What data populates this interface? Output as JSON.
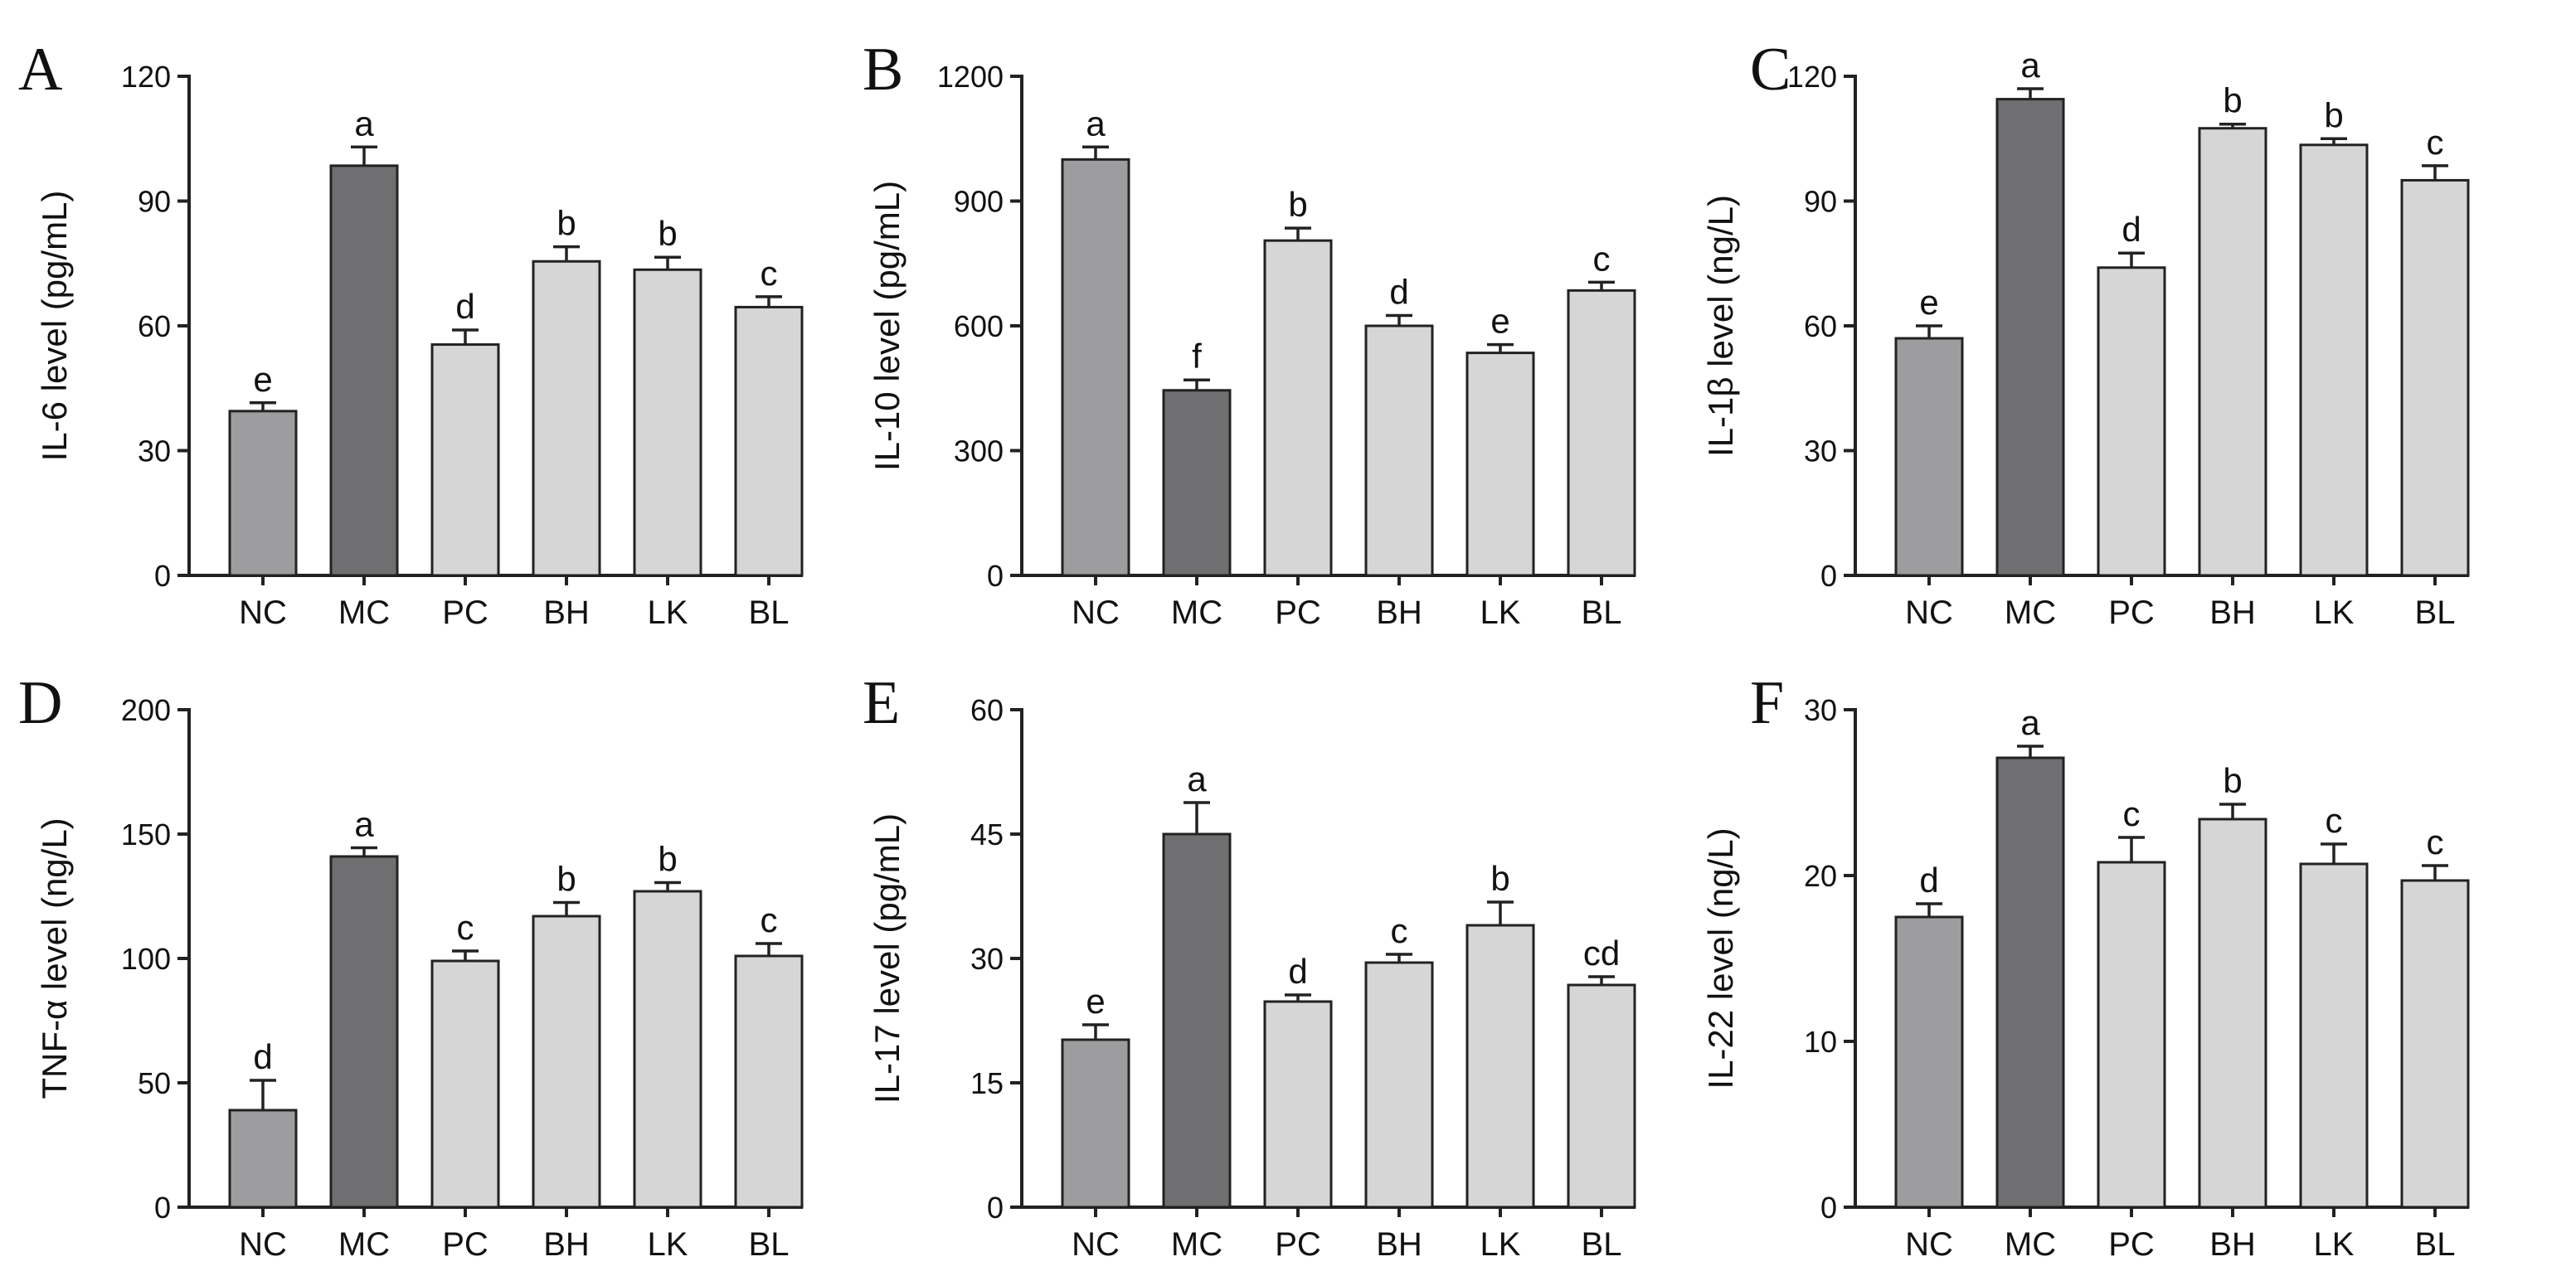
{
  "colors": {
    "nc_bar": "#9d9d9f",
    "mc_bar": "#6f6f71",
    "treatment_bar": "#d6d6d6",
    "axis": "#222222"
  },
  "chart_data": [
    {
      "type": "bar",
      "panel": "A",
      "ylabel": "IL-6 level (pg/mL)",
      "ylim": [
        0,
        120
      ],
      "yticks": [
        0,
        30,
        60,
        90,
        120
      ],
      "categories": [
        "NC",
        "MC",
        "PC",
        "BH",
        "LK",
        "BL"
      ],
      "values": [
        39.5,
        98.5,
        55.5,
        75.5,
        73.5,
        64.5
      ],
      "errors": [
        2,
        4.5,
        3.5,
        3.5,
        3,
        2.5
      ],
      "significance": [
        "e",
        "a",
        "d",
        "b",
        "b",
        "c"
      ]
    },
    {
      "type": "bar",
      "panel": "B",
      "ylabel": "IL-10 level (pg/mL)",
      "ylim": [
        0,
        1200
      ],
      "yticks": [
        0,
        300,
        600,
        900,
        1200
      ],
      "categories": [
        "NC",
        "MC",
        "PC",
        "BH",
        "LK",
        "BL"
      ],
      "values": [
        1000,
        445,
        805,
        600,
        535,
        685
      ],
      "errors": [
        30,
        25,
        30,
        25,
        20,
        20
      ],
      "significance": [
        "a",
        "f",
        "b",
        "d",
        "e",
        "c"
      ]
    },
    {
      "type": "bar",
      "panel": "C",
      "ylabel": "IL-1β level (ng/L)",
      "ylim": [
        0,
        120
      ],
      "yticks": [
        0,
        30,
        60,
        90,
        120
      ],
      "categories": [
        "NC",
        "MC",
        "PC",
        "BH",
        "LK",
        "BL"
      ],
      "values": [
        57,
        114.5,
        74,
        107.5,
        103.5,
        95
      ],
      "errors": [
        3,
        2.5,
        3.5,
        1,
        1.5,
        3.5
      ],
      "significance": [
        "e",
        "a",
        "d",
        "b",
        "b",
        "c"
      ]
    },
    {
      "type": "bar",
      "panel": "D",
      "ylabel": "TNF-α level (ng/L)",
      "ylim": [
        0,
        200
      ],
      "yticks": [
        0,
        50,
        100,
        150,
        200
      ],
      "categories": [
        "NC",
        "MC",
        "PC",
        "BH",
        "LK",
        "BL"
      ],
      "values": [
        39,
        141,
        99,
        117,
        127,
        101
      ],
      "errors": [
        12,
        3.5,
        4,
        5.5,
        3.5,
        5
      ],
      "significance": [
        "d",
        "a",
        "c",
        "b",
        "b",
        "c"
      ]
    },
    {
      "type": "bar",
      "panel": "E",
      "ylabel": "IL-17 level (pg/mL)",
      "ylim": [
        0,
        60
      ],
      "yticks": [
        0,
        15,
        30,
        45,
        60
      ],
      "categories": [
        "NC",
        "MC",
        "PC",
        "BH",
        "LK",
        "BL"
      ],
      "values": [
        20.2,
        45,
        24.8,
        29.5,
        34,
        26.8
      ],
      "errors": [
        1.8,
        3.8,
        0.8,
        1,
        2.8,
        1
      ],
      "significance": [
        "e",
        "a",
        "d",
        "c",
        "b",
        "cd"
      ]
    },
    {
      "type": "bar",
      "panel": "F",
      "ylabel": "IL-22 level (ng/L)",
      "ylim": [
        0,
        30
      ],
      "yticks": [
        0,
        10,
        20,
        30
      ],
      "categories": [
        "NC",
        "MC",
        "PC",
        "BH",
        "LK",
        "BL"
      ],
      "values": [
        17.5,
        27.1,
        20.8,
        23.4,
        20.7,
        19.7
      ],
      "errors": [
        0.8,
        0.7,
        1.5,
        0.9,
        1.2,
        0.9
      ],
      "significance": [
        "d",
        "a",
        "c",
        "b",
        "c",
        "c"
      ]
    }
  ]
}
